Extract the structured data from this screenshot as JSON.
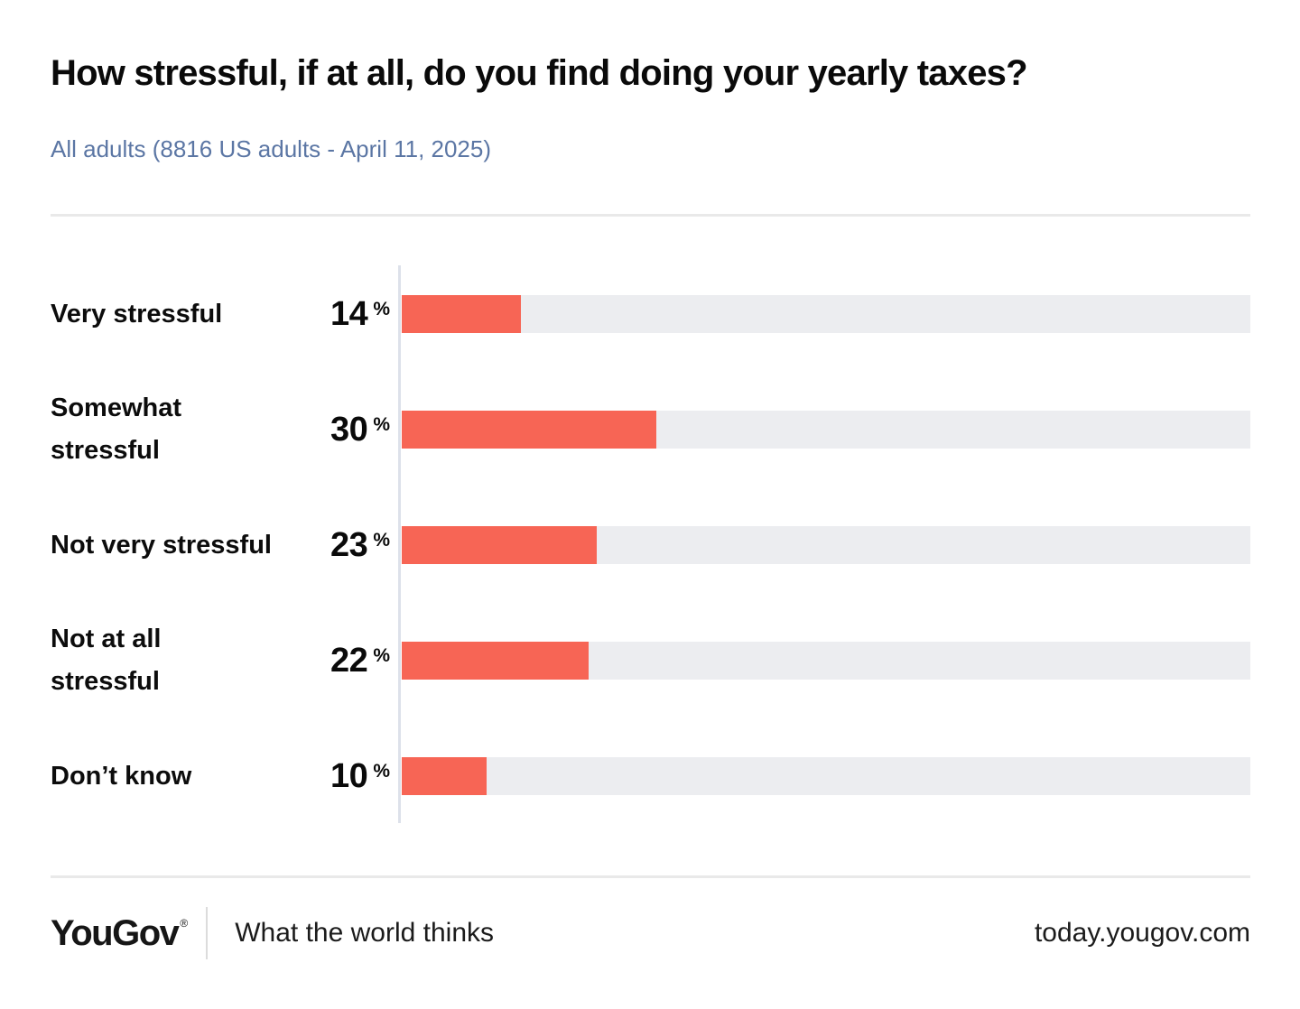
{
  "header": {
    "title": "How stressful, if at all, do you find doing your yearly taxes?",
    "subtitle": "All adults (8816 US adults - April 11, 2025)"
  },
  "chart_data": {
    "type": "bar",
    "orientation": "horizontal",
    "title": "How stressful, if at all, do you find doing your yearly taxes?",
    "subtitle": "All adults (8816 US adults - April 11, 2025)",
    "categories": [
      "Very stressful",
      "Somewhat stressful",
      "Not very stressful",
      "Not at all stressful",
      "Don’t know"
    ],
    "category_display_lines": [
      [
        "Very stressful"
      ],
      [
        "Somewhat",
        "stressful"
      ],
      [
        "Not very stressful"
      ],
      [
        "Not at all",
        "stressful"
      ],
      [
        "Don’t know"
      ]
    ],
    "values": [
      14,
      30,
      23,
      22,
      10
    ],
    "unit": "%",
    "percent_sign": "%",
    "xlim": [
      0,
      100
    ],
    "grid": false,
    "legend": false,
    "bar_color": "#f76555",
    "track_color": "#ecedf0",
    "axis_color": "#dde1ea",
    "subtitle_color": "#5b76a4"
  },
  "footer": {
    "logo": "YouGov",
    "registered_mark": "®",
    "tagline": "What the world thinks",
    "url": "today.yougov.com"
  }
}
